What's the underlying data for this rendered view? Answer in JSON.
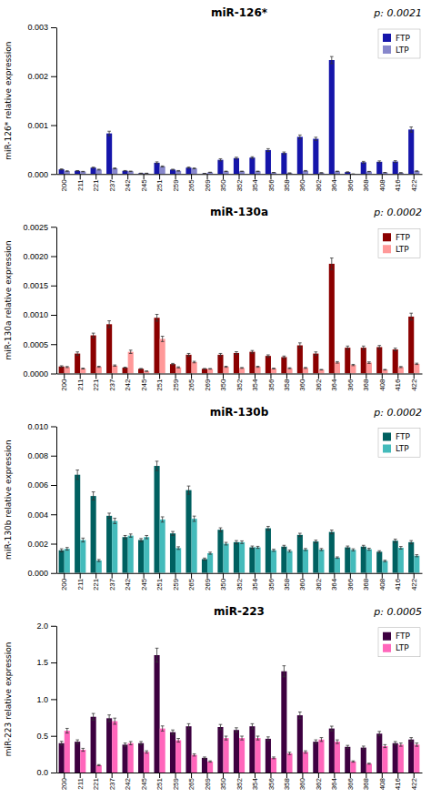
{
  "chart_data": [
    {
      "type": "bar",
      "title": "miR-126*",
      "annotations": [
        "p: 0.0021"
      ],
      "ylabel": "miR-126* relative expression",
      "categories": [
        "200",
        "211",
        "221",
        "237",
        "242",
        "245",
        "251",
        "259",
        "265",
        "269",
        "350",
        "352",
        "354",
        "356",
        "358",
        "360",
        "362",
        "364",
        "366",
        "368",
        "408",
        "416",
        "422"
      ],
      "series": [
        {
          "name": "FTP",
          "color": "#1515aa",
          "values": [
            9.5e-05,
            6.5e-05,
            0.00013,
            0.00083,
            6.5e-05,
            1.5e-05,
            0.00023,
            9e-05,
            0.00013,
            1e-05,
            0.00029,
            0.000325,
            0.000335,
            0.00049,
            0.00043,
            0.00076,
            0.00072,
            0.00233,
            4e-05,
            0.00024,
            0.00025,
            0.000255,
            0.00091
          ],
          "errors": [
            1e-05,
            5e-06,
            1e-05,
            4.5e-05,
            6e-06,
            3e-06,
            1.8e-05,
            8e-06,
            1.2e-05,
            3e-06,
            2.2e-05,
            1.8e-05,
            1.8e-05,
            2.8e-05,
            2e-05,
            3.8e-05,
            3.2e-05,
            7.2e-05,
            4e-06,
            1.8e-05,
            1.8e-05,
            1.8e-05,
            5.2e-05
          ]
        },
        {
          "name": "LTP",
          "color": "#8888cc",
          "values": [
            6e-05,
            5e-05,
            9e-05,
            0.000115,
            5.5e-05,
            1.5e-05,
            0.000155,
            6.5e-05,
            0.000115,
            3.5e-05,
            5.5e-05,
            5.5e-05,
            5.5e-05,
            3e-05,
            2e-05,
            6.5e-05,
            2.5e-05,
            5.5e-05,
            0.0,
            5e-05,
            3e-05,
            2.5e-05,
            6e-05
          ],
          "errors": [
            5e-06,
            4e-06,
            8e-06,
            9e-06,
            5e-06,
            2e-06,
            1e-05,
            6e-06,
            8e-06,
            2e-06,
            4e-06,
            4e-06,
            4e-06,
            2e-06,
            1e-06,
            6e-06,
            2e-06,
            4e-06,
            0.0,
            3e-06,
            2e-06,
            2e-06,
            4e-06
          ]
        }
      ],
      "ylim": [
        0,
        0.003
      ],
      "yticks": [
        {
          "value": 0,
          "label": "0.000"
        },
        0.001,
        0.002,
        0.003
      ],
      "legend": "upper right",
      "grid": false
    },
    {
      "type": "bar",
      "title": "miR-130a",
      "annotations": [
        "p: 0.0002"
      ],
      "ylabel": "miR-130a relative expression",
      "categories": [
        "200",
        "211",
        "221",
        "237",
        "242",
        "245",
        "251",
        "259",
        "265",
        "269",
        "350",
        "352",
        "354",
        "356",
        "358",
        "360",
        "362",
        "364",
        "366",
        "368",
        "408",
        "416",
        "422"
      ],
      "series": [
        {
          "name": "FTP",
          "color": "#8b0000",
          "values": [
            0.00012,
            0.00034,
            0.00065,
            0.00084,
            0.0001,
            8e-05,
            0.00095,
            0.00016,
            0.00032,
            8e-05,
            0.00032,
            0.00035,
            0.00037,
            0.0003,
            0.00028,
            0.00048,
            0.00034,
            0.00187,
            0.00044,
            0.00044,
            0.00045,
            0.00041,
            0.00097
          ],
          "errors": [
            1.2e-05,
            2.8e-05,
            3.8e-05,
            5.8e-05,
            8e-06,
            6e-06,
            5.8e-05,
            1.2e-05,
            2.2e-05,
            6e-06,
            2.2e-05,
            2.2e-05,
            2.2e-05,
            1.8e-05,
            1.8e-05,
            4.2e-05,
            2.8e-05,
            9.8e-05,
            2.8e-05,
            2.8e-05,
            2.8e-05,
            2.2e-05,
            5.8e-05
          ]
        },
        {
          "name": "LTP",
          "color": "#ff9999",
          "values": [
            0.00011,
            8.5e-05,
            0.000115,
            0.000135,
            0.00037,
            4e-05,
            0.00059,
            0.000105,
            0.000195,
            8e-05,
            0.000115,
            9.5e-05,
            0.000115,
            8.5e-05,
            9e-05,
            9.5e-05,
            6.5e-05,
            0.00019,
            0.000145,
            0.000185,
            6.5e-05,
            0.00011,
            0.000165
          ],
          "errors": [
            9e-06,
            7e-06,
            9e-06,
            1.1e-05,
            2.8e-05,
            3e-06,
            4.5e-05,
            9e-06,
            1.3e-05,
            5e-06,
            9e-06,
            7e-06,
            9e-06,
            6e-06,
            7e-06,
            8e-06,
            5e-06,
            1.3e-05,
            1.1e-05,
            1.3e-05,
            5e-06,
            9e-06,
            1.1e-05
          ]
        }
      ],
      "ylim": [
        0,
        0.0025
      ],
      "yticks": [
        {
          "value": 0,
          "label": "0.0000"
        },
        0.0005,
        {
          "value": 0.001,
          "label": "0.0010"
        },
        0.0015,
        {
          "value": 0.002,
          "label": "0.0020"
        },
        0.0025
      ],
      "legend": "upper right",
      "grid": false
    },
    {
      "type": "bar",
      "title": "miR-130b",
      "annotations": [
        "p: 0.0002"
      ],
      "ylabel": "miR-130b relative expression",
      "categories": [
        "200",
        "211",
        "221",
        "237",
        "242",
        "245",
        "251",
        "259",
        "265",
        "269",
        "350",
        "352",
        "354",
        "356",
        "358",
        "360",
        "362",
        "364",
        "366",
        "368",
        "408",
        "416",
        "422"
      ],
      "series": [
        {
          "name": "FTP",
          "color": "#006060",
          "values": [
            0.00155,
            0.0067,
            0.00525,
            0.0039,
            0.00245,
            0.00225,
            0.0073,
            0.0027,
            0.00565,
            0.00095,
            0.00295,
            0.0021,
            0.00175,
            0.00305,
            0.0018,
            0.0026,
            0.00215,
            0.0028,
            0.00175,
            0.0018,
            0.00145,
            0.0022,
            0.0021
          ],
          "errors": [
            0.0001,
            0.00032,
            0.00028,
            0.00018,
            0.00011,
            0.0001,
            0.00032,
            0.00013,
            0.00028,
            7e-05,
            0.00013,
            0.00011,
            9e-05,
            0.00013,
            9e-05,
            0.00011,
            9e-05,
            0.00013,
            9e-05,
            9e-05,
            7e-05,
            0.00011,
            0.00011
          ]
        },
        {
          "name": "LTP",
          "color": "#44bbbb",
          "values": [
            0.00165,
            0.00225,
            0.00085,
            0.00355,
            0.00255,
            0.00245,
            0.00365,
            0.0017,
            0.0037,
            0.00135,
            0.002,
            0.0021,
            0.00175,
            0.00155,
            0.0015,
            0.0016,
            0.0016,
            0.00105,
            0.00158,
            0.00162,
            0.00082,
            0.00172,
            0.00118
          ],
          "errors": [
            9e-05,
            0.00013,
            7e-05,
            0.00018,
            0.00011,
            0.00011,
            0.00018,
            9e-05,
            0.00018,
            7e-05,
            9e-05,
            9e-05,
            7e-05,
            7e-05,
            7e-05,
            7e-05,
            7e-05,
            5e-05,
            7e-05,
            7e-05,
            5e-05,
            9e-05,
            7e-05
          ]
        }
      ],
      "ylim": [
        0,
        0.01
      ],
      "yticks": [
        {
          "value": 0,
          "label": "0.000"
        },
        0.002,
        0.004,
        0.006,
        0.008,
        {
          "value": 0.01,
          "label": "0.010"
        }
      ],
      "legend": "upper right",
      "grid": false
    },
    {
      "type": "bar",
      "title": "miR-223",
      "annotations": [
        "p: 0.0005"
      ],
      "ylabel": "miR-223 relative expression",
      "categories": [
        "200",
        "211",
        "221",
        "237",
        "242",
        "245",
        "251",
        "259",
        "265",
        "269",
        "350",
        "352",
        "354",
        "356",
        "358",
        "360",
        "362",
        "364",
        "366",
        "368",
        "408",
        "416",
        "422"
      ],
      "series": [
        {
          "name": "FTP",
          "color": "#3d0040",
          "values": [
            0.4,
            0.42,
            0.76,
            0.74,
            0.38,
            0.4,
            1.6,
            0.55,
            0.63,
            0.2,
            0.62,
            0.58,
            0.63,
            0.46,
            1.38,
            0.78,
            0.42,
            0.6,
            0.35,
            0.34,
            0.53,
            0.4,
            0.45
          ],
          "errors": [
            0.025,
            0.025,
            0.045,
            0.045,
            0.022,
            0.022,
            0.095,
            0.03,
            0.035,
            0.012,
            0.035,
            0.03,
            0.035,
            0.026,
            0.075,
            0.045,
            0.025,
            0.032,
            0.02,
            0.02,
            0.03,
            0.022,
            0.026
          ]
        },
        {
          "name": "LTP",
          "color": "#ff66bb",
          "values": [
            0.57,
            0.31,
            0.1,
            0.7,
            0.4,
            0.28,
            0.6,
            0.44,
            0.24,
            0.15,
            0.47,
            0.47,
            0.47,
            0.2,
            0.26,
            0.28,
            0.45,
            0.42,
            0.15,
            0.12,
            0.36,
            0.38,
            0.38
          ],
          "errors": [
            0.032,
            0.02,
            0.008,
            0.042,
            0.022,
            0.016,
            0.035,
            0.025,
            0.015,
            0.009,
            0.026,
            0.026,
            0.026,
            0.012,
            0.016,
            0.016,
            0.026,
            0.025,
            0.009,
            0.007,
            0.02,
            0.022,
            0.022
          ]
        }
      ],
      "ylim": [
        0,
        2.0
      ],
      "yticks": [
        {
          "value": 0,
          "label": "0.0"
        },
        0.5,
        {
          "value": 1,
          "label": "1.0"
        },
        1.5,
        {
          "value": 2,
          "label": "2.0"
        }
      ],
      "legend": "upper right",
      "grid": false
    }
  ]
}
